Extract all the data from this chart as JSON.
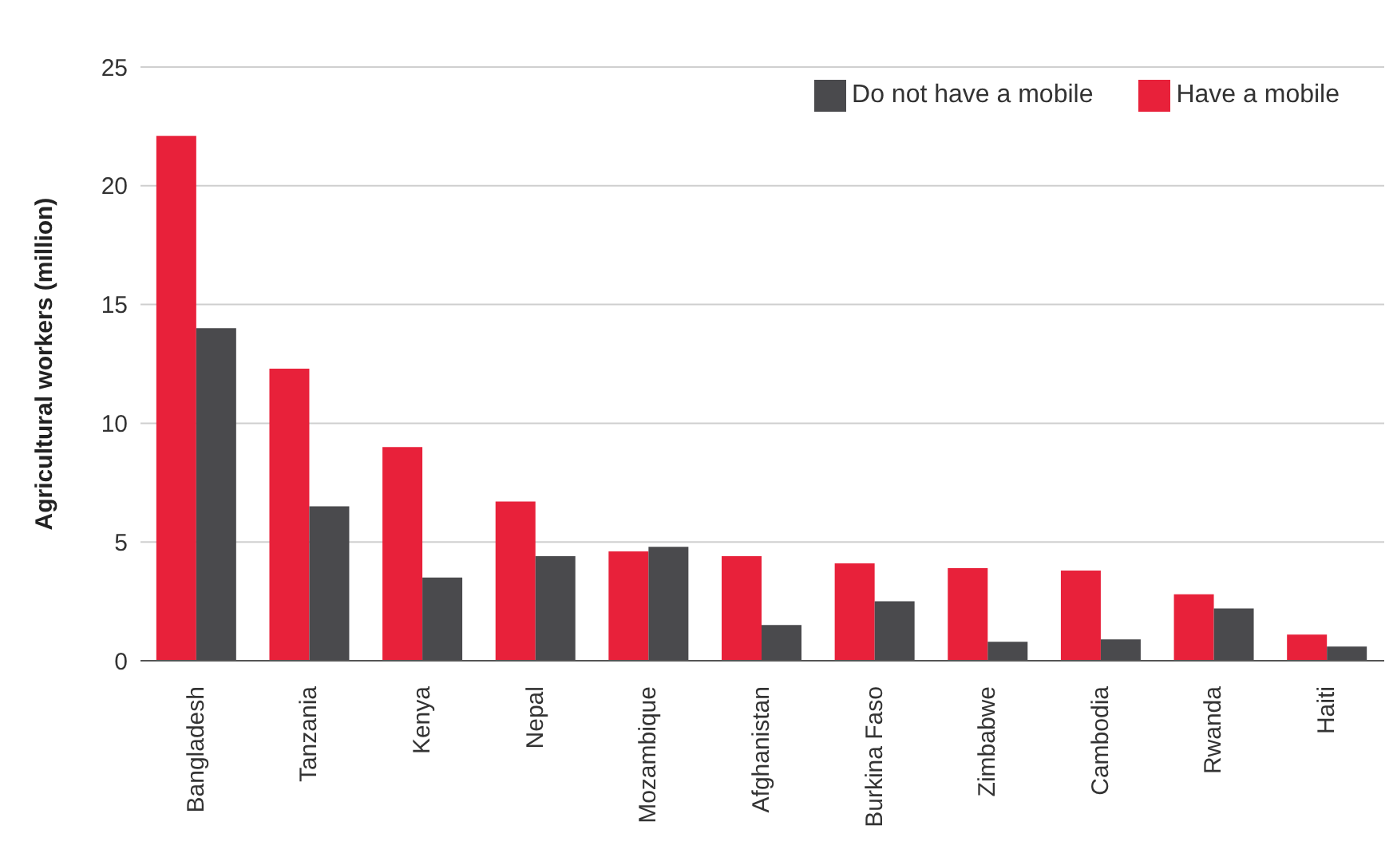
{
  "chart_data": {
    "type": "bar",
    "ylabel": "Agricultural workers (million)",
    "categories": [
      "Bangladesh",
      "Tanzania",
      "Kenya",
      "Nepal",
      "Mozambique",
      "Afghanistan",
      "Burkina Faso",
      "Zimbabwe",
      "Cambodia",
      "Rwanda",
      "Haiti"
    ],
    "series": [
      {
        "name": "Have a mobile",
        "color": "#e8213a",
        "values": [
          22.1,
          12.3,
          9.0,
          6.7,
          4.6,
          4.4,
          4.1,
          3.9,
          3.8,
          2.8,
          1.1
        ]
      },
      {
        "name": "Do not have a mobile",
        "color": "#4a4a4d",
        "values": [
          14.0,
          6.5,
          3.5,
          4.4,
          4.8,
          1.5,
          2.5,
          0.8,
          0.9,
          2.2,
          0.6
        ]
      }
    ],
    "ylim": [
      0,
      25
    ],
    "yticks": [
      0,
      5,
      10,
      15,
      20,
      25
    ],
    "grid": "y",
    "legend": "top right"
  }
}
